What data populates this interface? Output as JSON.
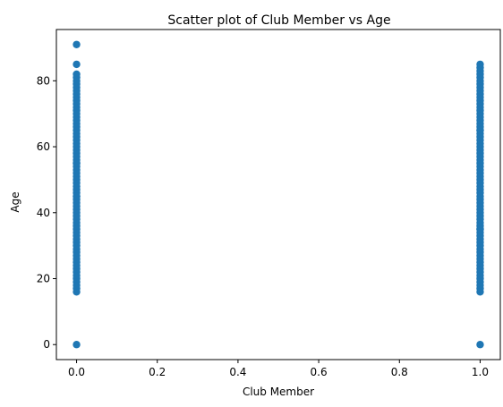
{
  "chart_data": {
    "type": "scatter",
    "title": "Scatter plot of Club Member vs Age",
    "xlabel": "Club Member",
    "ylabel": "Age",
    "xlim": [
      -0.05,
      1.05
    ],
    "ylim": [
      -4.55,
      95.55
    ],
    "x_ticks": [
      0.0,
      0.2,
      0.4,
      0.6,
      0.8,
      1.0
    ],
    "x_tick_labels": [
      "0.0",
      "0.2",
      "0.4",
      "0.6",
      "0.8",
      "1.0"
    ],
    "y_ticks": [
      0,
      20,
      40,
      60,
      80
    ],
    "y_tick_labels": [
      "0",
      "20",
      "40",
      "60",
      "80"
    ],
    "grid": false,
    "marker_color": "#1f77b4",
    "series": [
      {
        "x": [
          0,
          0,
          0,
          0,
          0,
          0,
          0,
          0,
          0,
          0,
          0,
          0,
          0,
          0,
          0,
          0,
          0,
          0,
          0,
          0,
          0,
          0,
          0,
          0,
          0,
          0,
          0,
          0,
          0,
          0,
          0,
          0,
          0,
          0,
          0,
          0,
          0,
          0,
          0,
          0,
          0,
          0,
          0,
          0,
          0,
          0,
          0,
          0,
          0,
          0,
          0,
          0,
          0,
          0,
          0,
          0,
          0,
          0,
          0,
          0,
          0,
          0,
          0,
          0,
          0,
          0,
          0,
          0,
          0,
          0,
          0,
          0,
          1,
          1,
          1,
          1,
          1,
          1,
          1,
          1,
          1,
          1,
          1,
          1,
          1,
          1,
          1,
          1,
          1,
          1,
          1,
          1,
          1,
          1,
          1,
          1,
          1,
          1,
          1,
          1,
          1,
          1,
          1,
          1,
          1,
          1,
          1,
          1,
          1,
          1,
          1,
          1,
          1,
          1,
          1,
          1,
          1,
          1,
          1,
          1,
          1,
          1,
          1,
          1,
          1,
          1,
          1,
          1,
          1,
          1,
          1,
          1,
          1,
          1,
          1,
          1,
          1,
          1,
          1,
          1,
          1,
          1,
          1,
          1,
          1
        ],
        "y": [
          0,
          16,
          17,
          18,
          19,
          20,
          21,
          22,
          23,
          24,
          25,
          26,
          27,
          28,
          29,
          30,
          31,
          32,
          33,
          34,
          35,
          36,
          37,
          38,
          39,
          40,
          41,
          42,
          43,
          44,
          45,
          46,
          47,
          48,
          49,
          50,
          51,
          52,
          53,
          54,
          55,
          56,
          57,
          58,
          59,
          60,
          61,
          62,
          63,
          64,
          65,
          66,
          67,
          68,
          69,
          70,
          71,
          72,
          73,
          74,
          75,
          76,
          77,
          78,
          79,
          80,
          81,
          82,
          85,
          91,
          45,
          55,
          0,
          16,
          17,
          18,
          19,
          20,
          21,
          22,
          23,
          24,
          25,
          26,
          27,
          28,
          29,
          30,
          31,
          32,
          33,
          34,
          35,
          36,
          37,
          38,
          39,
          40,
          41,
          42,
          43,
          44,
          45,
          46,
          47,
          48,
          49,
          50,
          51,
          52,
          53,
          54,
          55,
          56,
          57,
          58,
          59,
          60,
          61,
          62,
          63,
          64,
          65,
          66,
          67,
          68,
          69,
          70,
          71,
          72,
          73,
          74,
          75,
          76,
          77,
          78,
          79,
          80,
          81,
          82,
          83,
          84,
          85,
          35,
          65
        ]
      }
    ]
  }
}
